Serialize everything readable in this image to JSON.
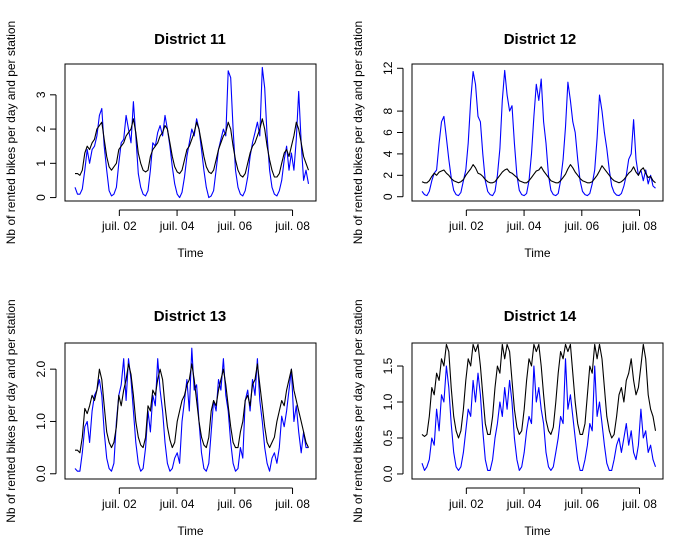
{
  "chart_data": [
    {
      "type": "line",
      "title": "District  11",
      "xlabel": "Time",
      "ylabel": "Nb of rented bikes per day and per station",
      "x_ticks": [
        "juil. 02",
        "juil. 04",
        "juil. 06",
        "juil. 08"
      ],
      "y_ticks": [
        0,
        1,
        2,
        3
      ],
      "ylim": [
        -0.1,
        3.9
      ],
      "series": [
        {
          "color": "#0000ff",
          "values": [
            0.3,
            0.1,
            0.1,
            0.25,
            0.8,
            1.4,
            1.0,
            1.4,
            1.5,
            1.8,
            2.4,
            2.6,
            1.5,
            0.8,
            0.2,
            0.05,
            0.1,
            0.3,
            1.0,
            1.6,
            1.7,
            2.4,
            2.0,
            1.6,
            2.8,
            1.8,
            0.7,
            0.3,
            0.1,
            0.05,
            0.2,
            0.8,
            1.6,
            1.5,
            1.9,
            2.1,
            1.8,
            2.4,
            2.0,
            1.5,
            0.9,
            0.4,
            0.1,
            0.0,
            0.15,
            0.6,
            1.2,
            1.6,
            2.0,
            1.8,
            2.3,
            2.0,
            1.4,
            0.8,
            0.3,
            0.0,
            0.05,
            0.2,
            0.8,
            1.4,
            1.7,
            2.0,
            1.8,
            3.7,
            3.5,
            2.0,
            0.8,
            0.3,
            0.1,
            0.05,
            0.2,
            0.6,
            1.2,
            1.6,
            1.9,
            2.2,
            1.8,
            3.8,
            3.2,
            1.8,
            0.8,
            0.3,
            0.1,
            0.05,
            0.2,
            0.5,
            1.1,
            1.5,
            0.8,
            1.3,
            0.8,
            1.7,
            3.1,
            1.6,
            0.5,
            0.8,
            0.4
          ]
        },
        {
          "color": "#000000",
          "values": [
            0.7,
            0.7,
            0.65,
            0.8,
            1.3,
            1.5,
            1.4,
            1.6,
            1.7,
            2.0,
            2.1,
            2.2,
            1.7,
            1.2,
            0.9,
            0.8,
            0.9,
            1.0,
            1.4,
            1.5,
            1.6,
            1.8,
            1.9,
            2.0,
            2.3,
            1.9,
            1.3,
            1.0,
            0.8,
            0.75,
            0.8,
            1.2,
            1.4,
            1.5,
            1.6,
            1.8,
            1.9,
            2.1,
            2.0,
            1.6,
            1.2,
            0.9,
            0.75,
            0.7,
            0.8,
            1.1,
            1.4,
            1.5,
            1.7,
            1.9,
            2.2,
            2.0,
            1.6,
            1.2,
            0.9,
            0.75,
            0.7,
            0.8,
            1.1,
            1.4,
            1.6,
            1.8,
            1.9,
            2.2,
            2.0,
            1.5,
            1.1,
            0.8,
            0.65,
            0.6,
            0.7,
            1.0,
            1.3,
            1.5,
            1.6,
            1.8,
            2.0,
            2.3,
            2.0,
            1.5,
            1.1,
            0.8,
            0.6,
            0.6,
            0.7,
            1.0,
            1.3,
            1.4,
            1.2,
            1.5,
            1.8,
            2.2,
            2.0,
            1.6,
            1.2,
            1.0,
            0.8
          ]
        }
      ]
    },
    {
      "type": "line",
      "title": "District  12",
      "xlabel": "Time",
      "ylabel": "Nb of rented bikes per day and per station",
      "x_ticks": [
        "juil. 02",
        "juil. 04",
        "juil. 06",
        "juil. 08"
      ],
      "y_ticks": [
        0,
        2,
        4,
        6,
        8,
        12
      ],
      "ylim": [
        -0.4,
        12.4
      ],
      "series": [
        {
          "color": "#0000ff",
          "values": [
            0.5,
            0.2,
            0.1,
            0.5,
            1.5,
            2.2,
            2.5,
            5.0,
            7.0,
            7.5,
            5.5,
            3.5,
            1.8,
            0.6,
            0.2,
            0.1,
            0.4,
            1.5,
            2.5,
            5.0,
            9.0,
            11.7,
            10.5,
            7.5,
            7.0,
            4.0,
            1.5,
            0.5,
            0.2,
            0.1,
            0.5,
            2.0,
            4.5,
            9.0,
            11.8,
            9.5,
            8.0,
            8.5,
            5.0,
            2.0,
            0.6,
            0.2,
            0.1,
            0.3,
            1.5,
            4.0,
            7.5,
            10.5,
            9.0,
            11.0,
            7.0,
            5.0,
            2.0,
            0.6,
            0.2,
            0.1,
            0.3,
            1.5,
            3.5,
            6.5,
            10.7,
            9.0,
            7.0,
            6.0,
            3.5,
            1.5,
            0.5,
            0.2,
            0.1,
            0.3,
            1.2,
            2.5,
            5.5,
            9.5,
            8.0,
            6.0,
            4.5,
            2.5,
            1.0,
            0.4,
            0.15,
            0.1,
            0.3,
            1.0,
            2.0,
            3.5,
            4.0,
            7.2,
            3.5,
            2.0,
            2.5,
            1.5,
            2.5,
            1.2,
            2.0,
            1.0,
            0.8
          ]
        },
        {
          "color": "#000000",
          "values": [
            1.4,
            1.3,
            1.3,
            1.5,
            1.9,
            2.2,
            2.0,
            2.3,
            2.4,
            2.5,
            2.2,
            2.0,
            1.7,
            1.5,
            1.4,
            1.3,
            1.4,
            1.6,
            2.0,
            2.3,
            2.6,
            3.0,
            2.7,
            2.2,
            2.1,
            1.9,
            1.6,
            1.4,
            1.3,
            1.3,
            1.4,
            1.7,
            2.0,
            2.3,
            2.5,
            2.6,
            2.3,
            2.2,
            2.0,
            1.8,
            1.5,
            1.4,
            1.3,
            1.3,
            1.5,
            1.8,
            2.1,
            2.4,
            2.5,
            2.8,
            2.4,
            2.1,
            1.8,
            1.5,
            1.4,
            1.3,
            1.3,
            1.5,
            1.8,
            2.1,
            2.6,
            3.0,
            2.7,
            2.3,
            2.0,
            1.7,
            1.5,
            1.4,
            1.3,
            1.3,
            1.4,
            1.7,
            2.0,
            2.4,
            2.9,
            2.6,
            2.3,
            2.0,
            1.7,
            1.5,
            1.4,
            1.3,
            1.4,
            1.6,
            1.9,
            2.2,
            2.4,
            2.8,
            2.3,
            2.0,
            2.5,
            2.7,
            2.2,
            1.8,
            1.9,
            1.5,
            1.3
          ]
        }
      ]
    },
    {
      "type": "line",
      "title": "District  13",
      "xlabel": "Time",
      "ylabel": "Nb of rented bikes per day and per station",
      "x_ticks": [
        "juil. 02",
        "juil. 04",
        "juil. 06",
        "juil. 08"
      ],
      "y_ticks": [
        "0.0",
        "1.0",
        "2.0"
      ],
      "ylim": [
        -0.1,
        2.5
      ],
      "series": [
        {
          "color": "#0000ff",
          "values": [
            0.1,
            0.05,
            0.05,
            0.4,
            0.9,
            1.0,
            0.6,
            1.2,
            1.5,
            1.6,
            1.8,
            1.5,
            0.8,
            0.3,
            0.1,
            0.05,
            0.2,
            1.0,
            1.5,
            1.7,
            2.2,
            1.4,
            2.2,
            1.8,
            1.2,
            0.6,
            0.2,
            0.05,
            0.1,
            0.5,
            1.2,
            0.8,
            1.5,
            1.3,
            2.2,
            1.6,
            1.2,
            0.6,
            0.2,
            0.05,
            0.1,
            0.3,
            0.4,
            0.2,
            1.0,
            1.4,
            1.8,
            1.2,
            2.4,
            1.6,
            1.7,
            1.0,
            0.4,
            0.1,
            0.05,
            0.2,
            0.8,
            1.4,
            1.2,
            1.8,
            1.6,
            2.2,
            1.5,
            1.2,
            0.6,
            0.2,
            0.05,
            0.1,
            0.5,
            0.3,
            1.4,
            1.6,
            1.2,
            1.8,
            1.5,
            2.2,
            1.4,
            1.0,
            0.5,
            0.2,
            0.05,
            0.3,
            0.4,
            0.2,
            0.5,
            1.1,
            0.9,
            1.2,
            1.6,
            2.0,
            1.0,
            1.3,
            0.8,
            0.4,
            0.8,
            0.5,
            0.5
          ]
        },
        {
          "color": "#000000",
          "values": [
            0.45,
            0.45,
            0.4,
            0.7,
            1.25,
            1.15,
            1.3,
            1.5,
            1.4,
            1.6,
            2.0,
            1.8,
            1.3,
            0.8,
            0.6,
            0.5,
            0.6,
            0.9,
            1.5,
            1.3,
            1.6,
            1.8,
            2.1,
            1.9,
            1.5,
            1.0,
            0.7,
            0.55,
            0.5,
            0.7,
            1.3,
            1.2,
            1.6,
            1.5,
            1.8,
            2.0,
            1.8,
            1.3,
            0.9,
            0.65,
            0.5,
            0.6,
            1.0,
            1.2,
            1.4,
            1.5,
            1.7,
            1.8,
            2.1,
            1.8,
            1.4,
            1.0,
            0.7,
            0.55,
            0.5,
            0.7,
            1.2,
            1.4,
            1.3,
            1.6,
            1.8,
            2.0,
            1.7,
            1.3,
            0.9,
            0.6,
            0.5,
            0.5,
            0.8,
            1.0,
            1.4,
            1.5,
            1.3,
            1.7,
            1.8,
            2.1,
            1.7,
            1.3,
            0.9,
            0.6,
            0.5,
            0.6,
            0.7,
            1.0,
            1.2,
            1.4,
            1.3,
            1.6,
            1.8,
            2.0,
            1.6,
            1.4,
            1.2,
            1.0,
            0.8,
            0.6,
            0.5
          ]
        }
      ]
    },
    {
      "type": "line",
      "title": "District  14",
      "xlabel": "Time",
      "ylabel": "Nb of rented bikes per day and per station",
      "x_ticks": [
        "juil. 02",
        "juil. 04",
        "juil. 06",
        "juil. 08"
      ],
      "y_ticks": [
        "0.0",
        "0.5",
        "1.0",
        "1.5"
      ],
      "ylim": [
        -0.07,
        1.82
      ],
      "series": [
        {
          "color": "#0000ff",
          "values": [
            0.15,
            0.05,
            0.1,
            0.2,
            0.5,
            0.4,
            0.9,
            0.6,
            1.1,
            1.0,
            1.5,
            1.2,
            0.7,
            0.3,
            0.1,
            0.05,
            0.1,
            0.3,
            0.6,
            0.9,
            0.8,
            1.3,
            1.0,
            1.4,
            1.1,
            0.6,
            0.2,
            0.05,
            0.05,
            0.2,
            0.5,
            0.7,
            1.0,
            0.8,
            1.2,
            0.9,
            1.3,
            1.0,
            0.5,
            0.2,
            0.05,
            0.1,
            0.3,
            0.6,
            0.8,
            0.7,
            1.5,
            1.0,
            1.2,
            0.9,
            0.7,
            0.3,
            0.1,
            0.05,
            0.1,
            0.3,
            0.5,
            0.8,
            0.7,
            1.6,
            0.9,
            1.1,
            0.8,
            0.5,
            0.2,
            0.05,
            0.05,
            0.2,
            0.4,
            0.7,
            0.6,
            1.5,
            0.8,
            1.0,
            0.7,
            0.4,
            0.15,
            0.05,
            0.05,
            0.2,
            0.4,
            0.5,
            0.3,
            0.5,
            0.7,
            0.4,
            0.6,
            0.3,
            0.2,
            0.4,
            0.9,
            0.5,
            0.6,
            0.3,
            0.4,
            0.2,
            0.1
          ]
        },
        {
          "color": "#000000",
          "values": [
            0.55,
            0.52,
            0.55,
            0.8,
            1.2,
            1.1,
            1.4,
            1.3,
            1.6,
            1.5,
            1.8,
            1.7,
            1.2,
            0.8,
            0.6,
            0.5,
            0.6,
            0.9,
            1.3,
            1.6,
            1.5,
            1.8,
            1.7,
            1.8,
            1.5,
            1.1,
            0.7,
            0.55,
            0.55,
            0.8,
            1.2,
            1.5,
            1.4,
            1.8,
            1.6,
            1.8,
            1.7,
            1.3,
            0.9,
            0.65,
            0.55,
            0.6,
            0.9,
            1.3,
            1.6,
            1.5,
            1.8,
            1.7,
            1.8,
            1.5,
            1.1,
            0.75,
            0.6,
            0.55,
            0.65,
            1.0,
            1.4,
            1.7,
            1.6,
            1.8,
            1.7,
            1.8,
            1.4,
            1.0,
            0.7,
            0.55,
            0.55,
            0.7,
            1.1,
            1.5,
            1.4,
            1.8,
            1.6,
            1.8,
            1.6,
            1.2,
            0.8,
            0.6,
            0.5,
            0.55,
            0.8,
            1.1,
            1.2,
            1.0,
            1.3,
            1.4,
            1.6,
            1.3,
            1.1,
            1.2,
            1.5,
            1.8,
            1.6,
            1.1,
            0.9,
            0.8,
            0.6
          ]
        }
      ]
    }
  ]
}
